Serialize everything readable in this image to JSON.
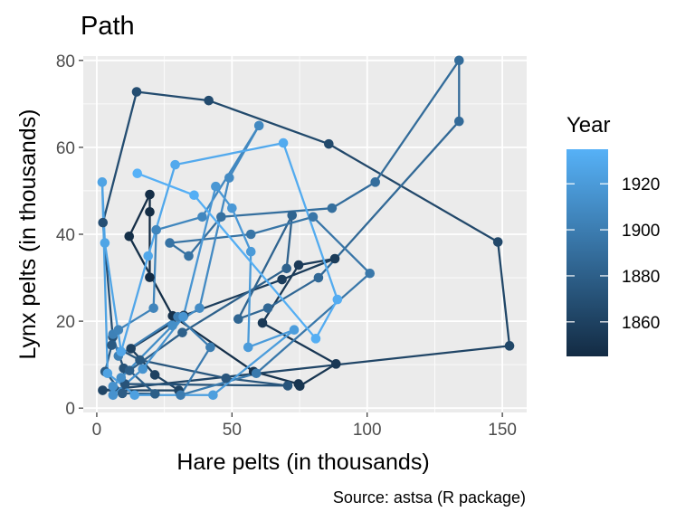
{
  "chart_data": {
    "type": "line",
    "title": "Path",
    "xlabel": "Hare pelts (in thousands)",
    "ylabel": "Lynx pelts (in thousands)",
    "caption": "Source: astsa (R package)",
    "xlim": [
      -5,
      159
    ],
    "ylim": [
      -1,
      81
    ],
    "x_ticks": [
      0,
      50,
      100,
      150
    ],
    "y_ticks": [
      0,
      20,
      40,
      60,
      80
    ],
    "grid": true,
    "legend": {
      "title": "Year",
      "position": "right",
      "ticks": [
        1860,
        1880,
        1900,
        1920
      ],
      "range": [
        1845,
        1935
      ],
      "color_low": "#132b43",
      "color_high": "#56b1f7"
    },
    "series": [
      {
        "x": [
          19.58,
          19.6,
          19.61,
          11.99,
          28.04,
          58.0,
          74.6,
          75.09,
          88.48,
          61.28,
          74.67,
          88.06,
          68.51,
          32.19,
          12.64,
          21.49,
          30.35,
          2.18,
          152.65,
          148.36,
          85.81,
          41.41,
          14.75,
          2.28,
          5.91,
          9.95,
          10.44,
          70.64,
          47.8,
          15.94,
          5.52,
          3.09,
          9.46,
          21.54,
          12.11,
          31.65,
          70.21,
          72.23,
          52.34,
          63.3,
          82.0,
          134.0,
          134.0,
          103.0,
          87.0,
          46.0,
          34.0,
          27.0,
          57.0,
          80.0,
          101.0,
          59.0,
          31.0,
          42.0,
          30.0,
          8.0,
          6.0,
          8.0,
          21.0,
          22.0,
          39.0,
          60.0,
          49.0,
          38.0,
          28.0,
          9.0,
          6.0,
          6.0,
          17.0,
          32.0,
          44.0,
          50.0,
          57.0,
          56.0,
          73.0,
          43.0,
          14.0,
          4.0,
          2.0,
          3.0,
          9.0,
          19.0,
          29.0,
          69.0,
          89.0,
          81.0,
          36.0,
          15.0
        ],
        "y": [
          30.09,
          45.15,
          49.15,
          39.52,
          21.23,
          8.42,
          5.56,
          5.08,
          10.17,
          19.6,
          32.91,
          34.38,
          29.59,
          21.3,
          13.69,
          7.65,
          4.08,
          4.09,
          14.33,
          38.22,
          60.78,
          70.77,
          72.77,
          42.68,
          16.39,
          9.16,
          5.54,
          5.16,
          6.88,
          11.06,
          14.48,
          8.4,
          3.4,
          3.29,
          8.64,
          17.38,
          32.13,
          44.36,
          20.5,
          23.0,
          30.0,
          66.0,
          80.0,
          52.0,
          46.0,
          44.0,
          35.0,
          38.0,
          40.0,
          44.0,
          31.0,
          8.0,
          3.0,
          14.0,
          21.0,
          12.0,
          17.0,
          18.0,
          23.0,
          41.0,
          44.0,
          65.0,
          53.0,
          23.0,
          19.0,
          7.0,
          5.0,
          3.0,
          9.0,
          21.0,
          51.0,
          46.0,
          36.0,
          14.0,
          18.0,
          3.0,
          3.0,
          8.0,
          52.0,
          38.0,
          13.0,
          35.0,
          56.0,
          61.0,
          25.0,
          16.0,
          49.0,
          54.0
        ]
      }
    ]
  }
}
